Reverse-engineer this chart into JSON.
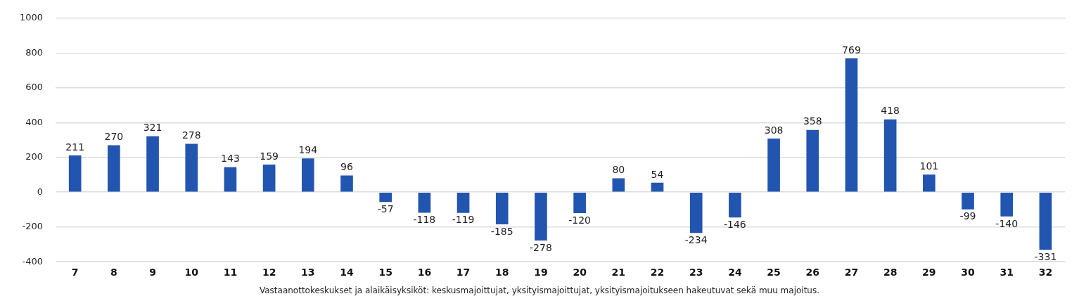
{
  "chart_data": {
    "type": "bar",
    "categories": [
      "7",
      "8",
      "9",
      "10",
      "11",
      "12",
      "13",
      "14",
      "15",
      "16",
      "17",
      "18",
      "19",
      "20",
      "21",
      "22",
      "23",
      "24",
      "25",
      "26",
      "27",
      "28",
      "29",
      "30",
      "31",
      "32"
    ],
    "values": [
      211,
      270,
      321,
      278,
      143,
      159,
      194,
      96,
      -57,
      -118,
      -119,
      -185,
      -278,
      -120,
      80,
      54,
      -234,
      -146,
      308,
      358,
      769,
      418,
      101,
      -99,
      -140,
      -331
    ],
    "color": "#2255b0",
    "ylim": [
      -400,
      1000
    ],
    "yticks": [
      -400,
      -200,
      0,
      200,
      400,
      600,
      800,
      1000
    ],
    "grid": "y",
    "data_labels": true,
    "legend": false,
    "annotations": [
      "Vastaanottokeskukset ja alaikäisyksiköt: keskusmajoittujat, yksityismajoittujat, yksityismajoitukseen hakeutuvat sekä muu majoitus."
    ]
  }
}
